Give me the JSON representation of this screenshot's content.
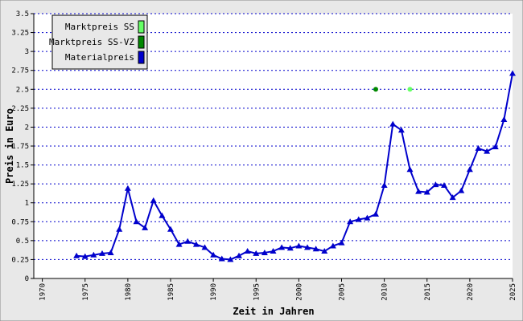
{
  "chart_data": {
    "type": "line",
    "ylabel": "Preis in Euro",
    "xlabel": "Zeit in Jahren",
    "xlim": [
      1969,
      2025
    ],
    "xticks": [
      1970,
      1975,
      1980,
      1985,
      1990,
      1995,
      2000,
      2005,
      2010,
      2015,
      2020,
      2025
    ],
    "ylim": [
      0,
      3.5
    ],
    "yticks": [
      0,
      0.25,
      0.5,
      0.75,
      1,
      1.25,
      1.5,
      1.75,
      2,
      2.25,
      2.5,
      2.75,
      3,
      3.25,
      3.5
    ],
    "grid": true,
    "legend": "upper-left",
    "series": [
      {
        "name": "Marktpreis SS",
        "color": "#66ff66",
        "marker": "circle",
        "x": [
          2013
        ],
        "values": [
          2.5
        ]
      },
      {
        "name": "Marktpreis SS-VZ",
        "color": "#008800",
        "marker": "circle",
        "x": [
          2009
        ],
        "values": [
          2.5
        ]
      },
      {
        "name": "Materialpreis",
        "color": "#0000cc",
        "marker": "triangle",
        "x": [
          1974,
          1975,
          1976,
          1977,
          1978,
          1979,
          1980,
          1981,
          1982,
          1983,
          1984,
          1985,
          1986,
          1987,
          1988,
          1989,
          1990,
          1991,
          1992,
          1993,
          1994,
          1995,
          1996,
          1997,
          1998,
          1999,
          2000,
          2001,
          2002,
          2003,
          2004,
          2005,
          2006,
          2007,
          2008,
          2009,
          2010,
          2011,
          2012,
          2013,
          2014,
          2015,
          2016,
          2017,
          2018,
          2019,
          2020,
          2021,
          2022,
          2023,
          2024,
          2025
        ],
        "values": [
          0.3,
          0.29,
          0.31,
          0.33,
          0.34,
          0.65,
          1.19,
          0.75,
          0.67,
          1.03,
          0.83,
          0.65,
          0.45,
          0.49,
          0.45,
          0.41,
          0.31,
          0.26,
          0.25,
          0.3,
          0.36,
          0.33,
          0.34,
          0.36,
          0.41,
          0.4,
          0.43,
          0.41,
          0.39,
          0.36,
          0.43,
          0.47,
          0.75,
          0.78,
          0.8,
          0.85,
          1.23,
          2.04,
          1.96,
          1.44,
          1.15,
          1.14,
          1.24,
          1.23,
          1.07,
          1.16,
          1.44,
          1.72,
          1.68,
          1.74,
          2.1,
          2.71
        ]
      }
    ]
  }
}
